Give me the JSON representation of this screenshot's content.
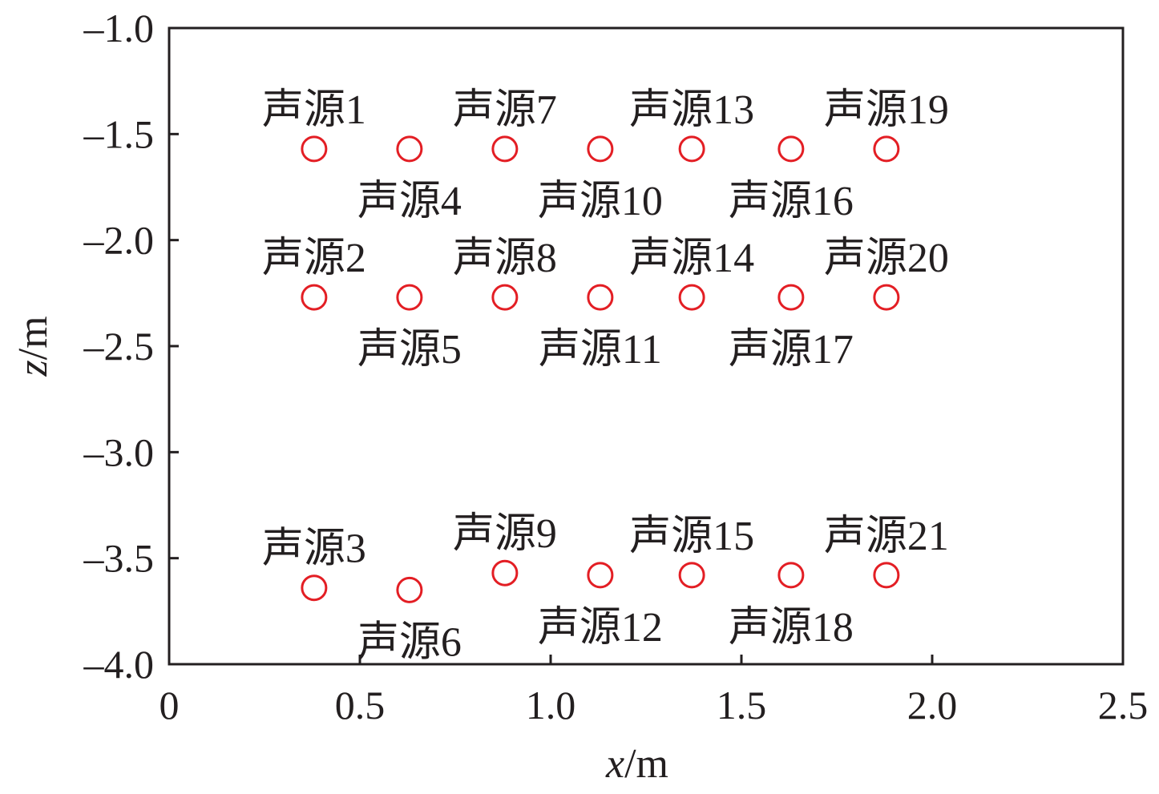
{
  "chart_data": {
    "type": "scatter",
    "title": "",
    "xlabel_var": "x",
    "xlabel_unit": "/m",
    "ylabel_var": "z",
    "ylabel_unit": "/m",
    "xlim": [
      0,
      2.5
    ],
    "ylim": [
      -4.0,
      -1.0
    ],
    "xticks": [
      "0",
      "0.5",
      "1.0",
      "1.5",
      "2.0",
      "2.5"
    ],
    "xtick_values": [
      0,
      0.5,
      1.0,
      1.5,
      2.0,
      2.5
    ],
    "yticks": [
      "–1.0",
      "–1.5",
      "–2.0",
      "–2.5",
      "–3.0",
      "–3.5",
      "–4.0"
    ],
    "ytick_values": [
      -1.0,
      -1.5,
      -2.0,
      -2.5,
      -3.0,
      -3.5,
      -4.0
    ],
    "grid": false,
    "marker": "open-circle",
    "marker_color": "#e31e24",
    "points": [
      {
        "label": "声源1",
        "x": 0.38,
        "y": -1.57
      },
      {
        "label": "声源2",
        "x": 0.38,
        "y": -2.27
      },
      {
        "label": "声源3",
        "x": 0.38,
        "y": -3.64
      },
      {
        "label": "声源4",
        "x": 0.63,
        "y": -1.57
      },
      {
        "label": "声源5",
        "x": 0.63,
        "y": -2.27
      },
      {
        "label": "声源6",
        "x": 0.63,
        "y": -3.65
      },
      {
        "label": "声源7",
        "x": 0.88,
        "y": -1.57
      },
      {
        "label": "声源8",
        "x": 0.88,
        "y": -2.27
      },
      {
        "label": "声源9",
        "x": 0.88,
        "y": -3.57
      },
      {
        "label": "声源10",
        "x": 1.13,
        "y": -1.57
      },
      {
        "label": "声源11",
        "x": 1.13,
        "y": -2.27
      },
      {
        "label": "声源12",
        "x": 1.13,
        "y": -3.58
      },
      {
        "label": "声源13",
        "x": 1.37,
        "y": -1.57
      },
      {
        "label": "声源14",
        "x": 1.37,
        "y": -2.27
      },
      {
        "label": "声源15",
        "x": 1.37,
        "y": -3.58
      },
      {
        "label": "声源16",
        "x": 1.63,
        "y": -1.57
      },
      {
        "label": "声源17",
        "x": 1.63,
        "y": -2.27
      },
      {
        "label": "声源18",
        "x": 1.63,
        "y": -3.58
      },
      {
        "label": "声源19",
        "x": 1.88,
        "y": -1.57
      },
      {
        "label": "声源20",
        "x": 1.88,
        "y": -2.27
      },
      {
        "label": "声源21",
        "x": 1.88,
        "y": -3.58
      }
    ]
  }
}
